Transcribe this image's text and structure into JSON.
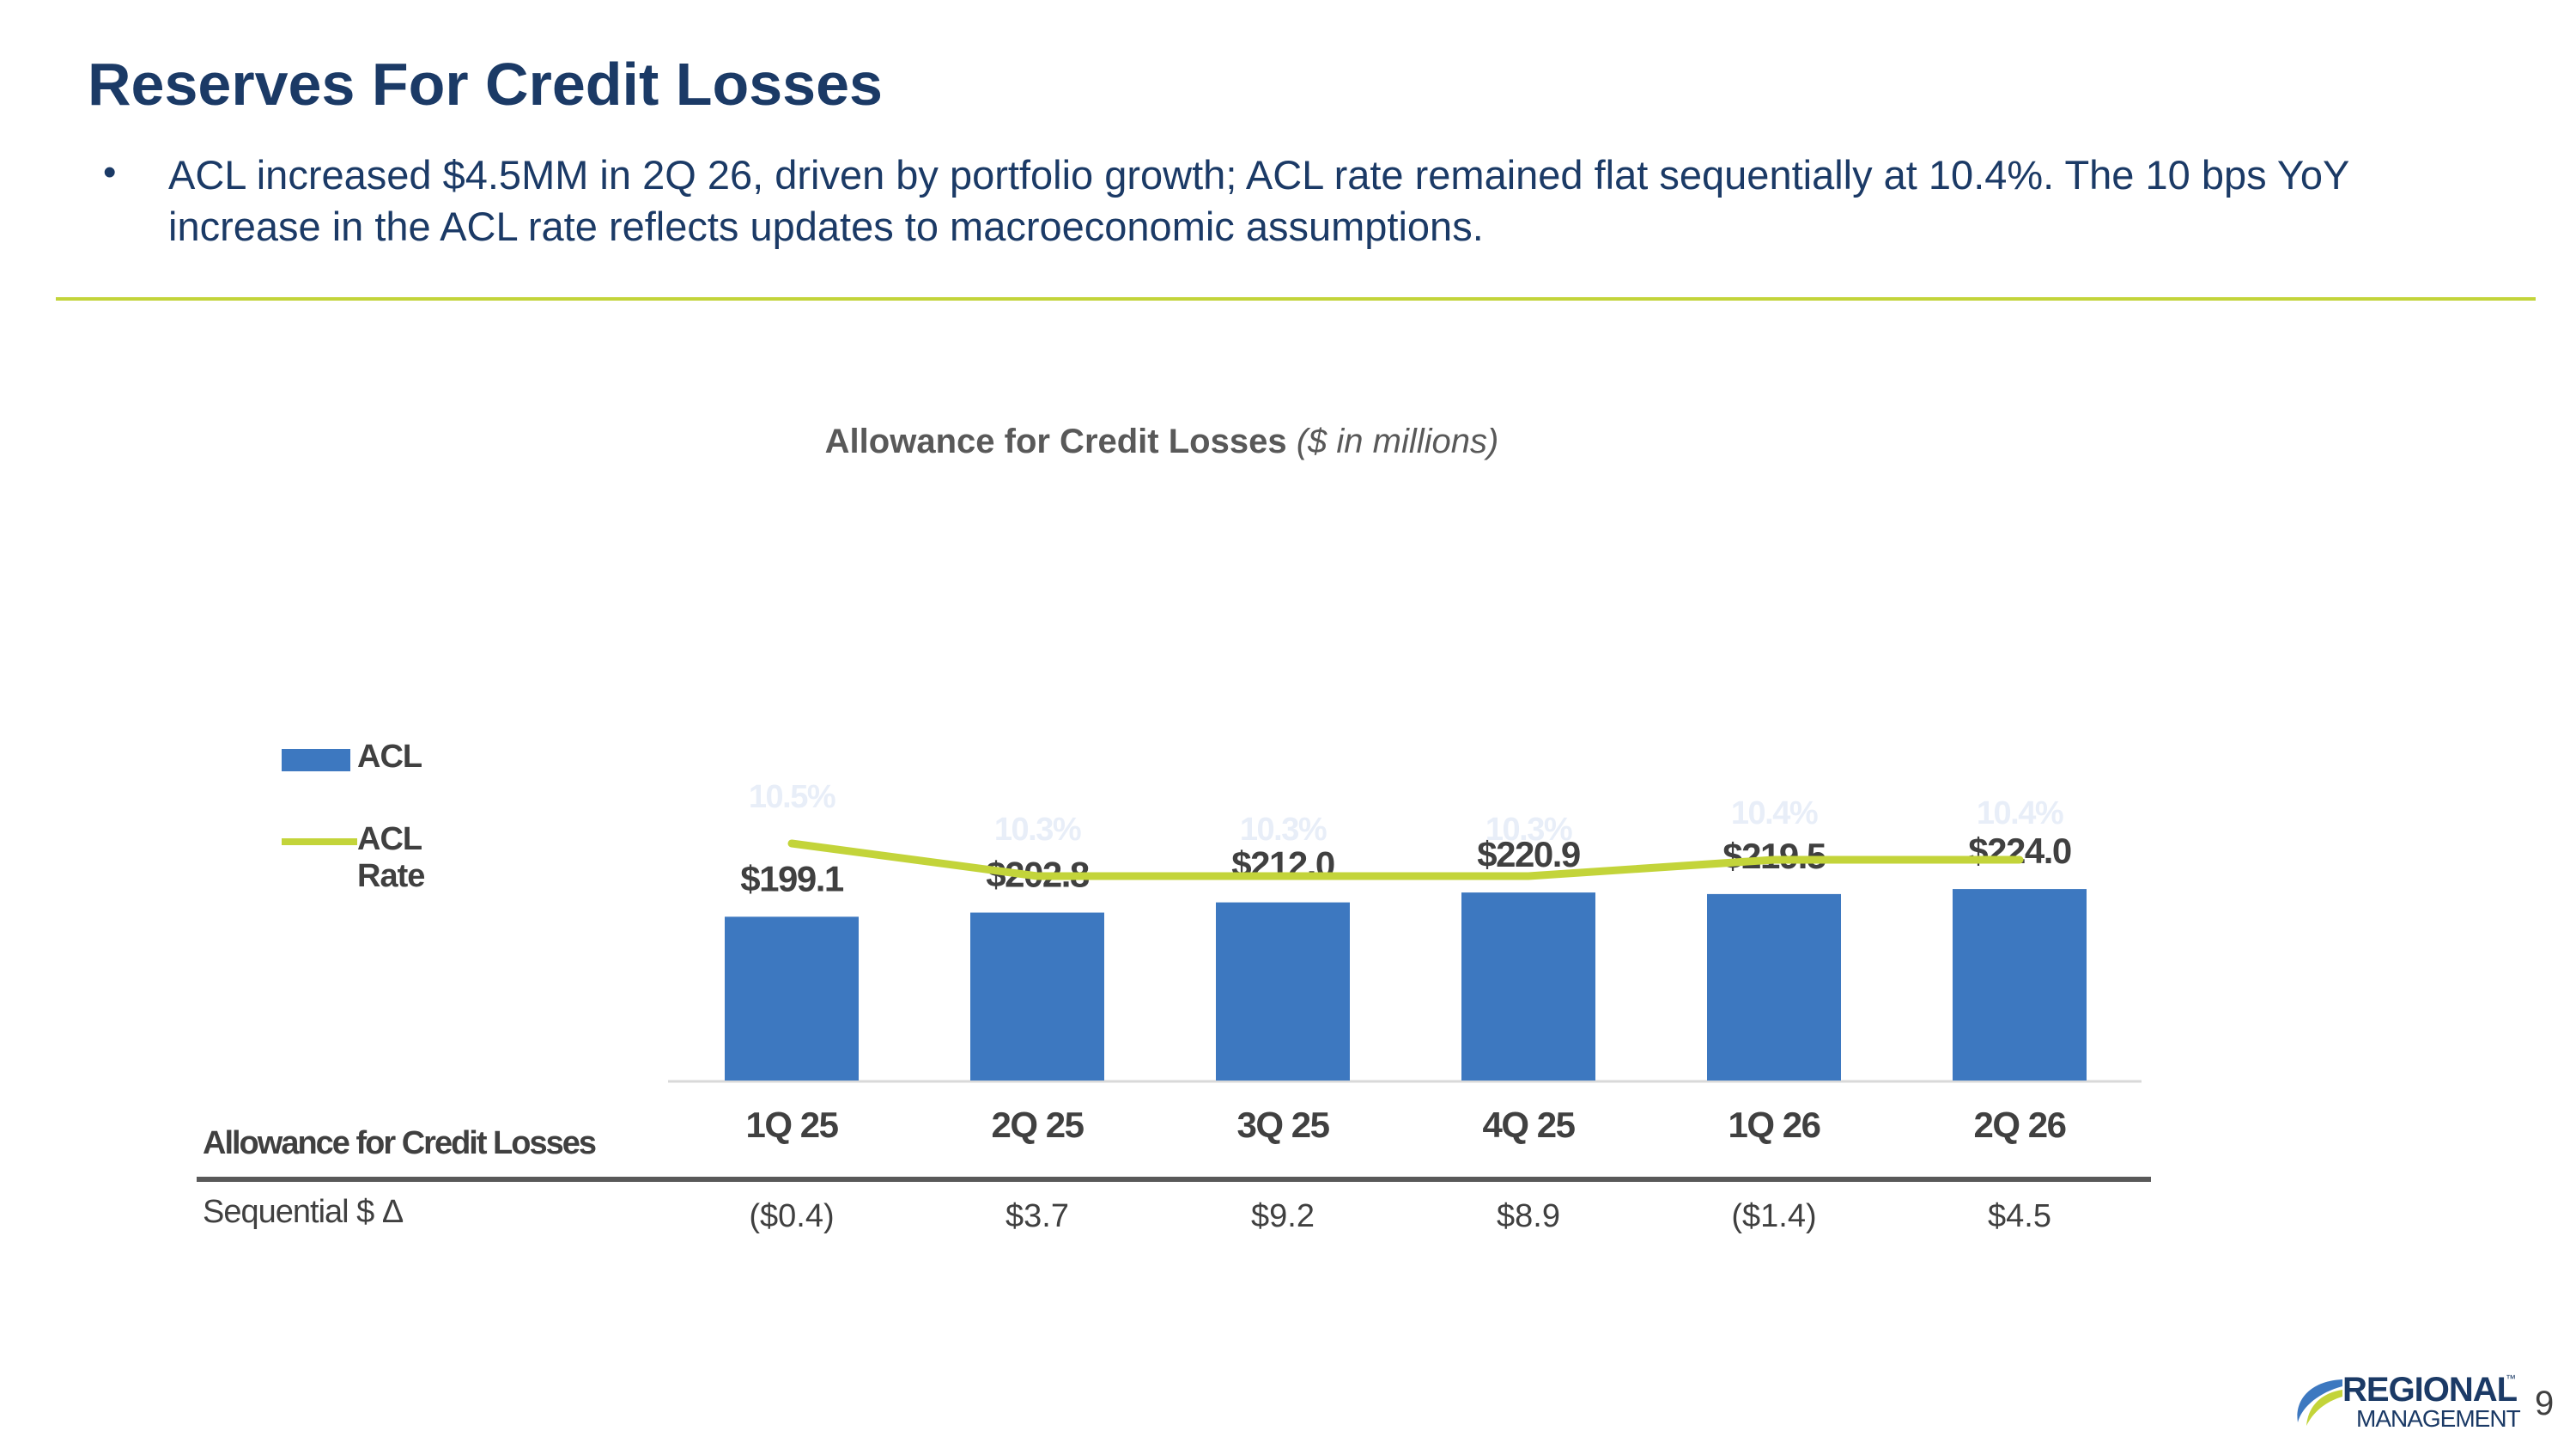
{
  "slide": {
    "title": "Reserves For Credit Losses",
    "bullet": "ACL increased $4.5MM in 2Q 26, driven by portfolio growth; ACL rate remained flat sequentially at 10.4%. The 10 bps YoY increase in the ACL rate reflects updates to macroeconomic assumptions.",
    "page_number": "9"
  },
  "logo": {
    "line1": "REGIONAL",
    "line2": "MANAGEMENT",
    "tm": "™"
  },
  "colors": {
    "bar": "#3d78c0",
    "line": "#c3d43a",
    "title": "#1b3a66",
    "divider": "#c3d43a"
  },
  "chart_data": {
    "type": "bar",
    "title": "Allowance for Credit Losses",
    "subtitle": "($ in millions)",
    "categories": [
      "1Q 25",
      "2Q 25",
      "3Q 25",
      "4Q 25",
      "1Q 26",
      "2Q 26"
    ],
    "series": [
      {
        "name": "ACL",
        "type": "bar",
        "values": [
          199.1,
          202.8,
          212.0,
          220.9,
          219.5,
          224.0
        ],
        "labels": [
          "$199.1",
          "$202.8",
          "$212.0",
          "$220.9",
          "$219.5",
          "$224.0"
        ]
      },
      {
        "name": "ACL Rate",
        "type": "line",
        "values": [
          10.5,
          10.3,
          10.3,
          10.3,
          10.4,
          10.4
        ],
        "labels": [
          "10.5%",
          "10.3%",
          "10.3%",
          "10.3%",
          "10.4%",
          "10.4%"
        ]
      }
    ],
    "legend": "left",
    "table": {
      "header": "Allowance for Credit Losses",
      "row_label": "Sequential $ Δ",
      "values": [
        "($0.4)",
        "$3.7",
        "$9.2",
        "$8.9",
        "($1.4)",
        "$4.5"
      ]
    }
  }
}
